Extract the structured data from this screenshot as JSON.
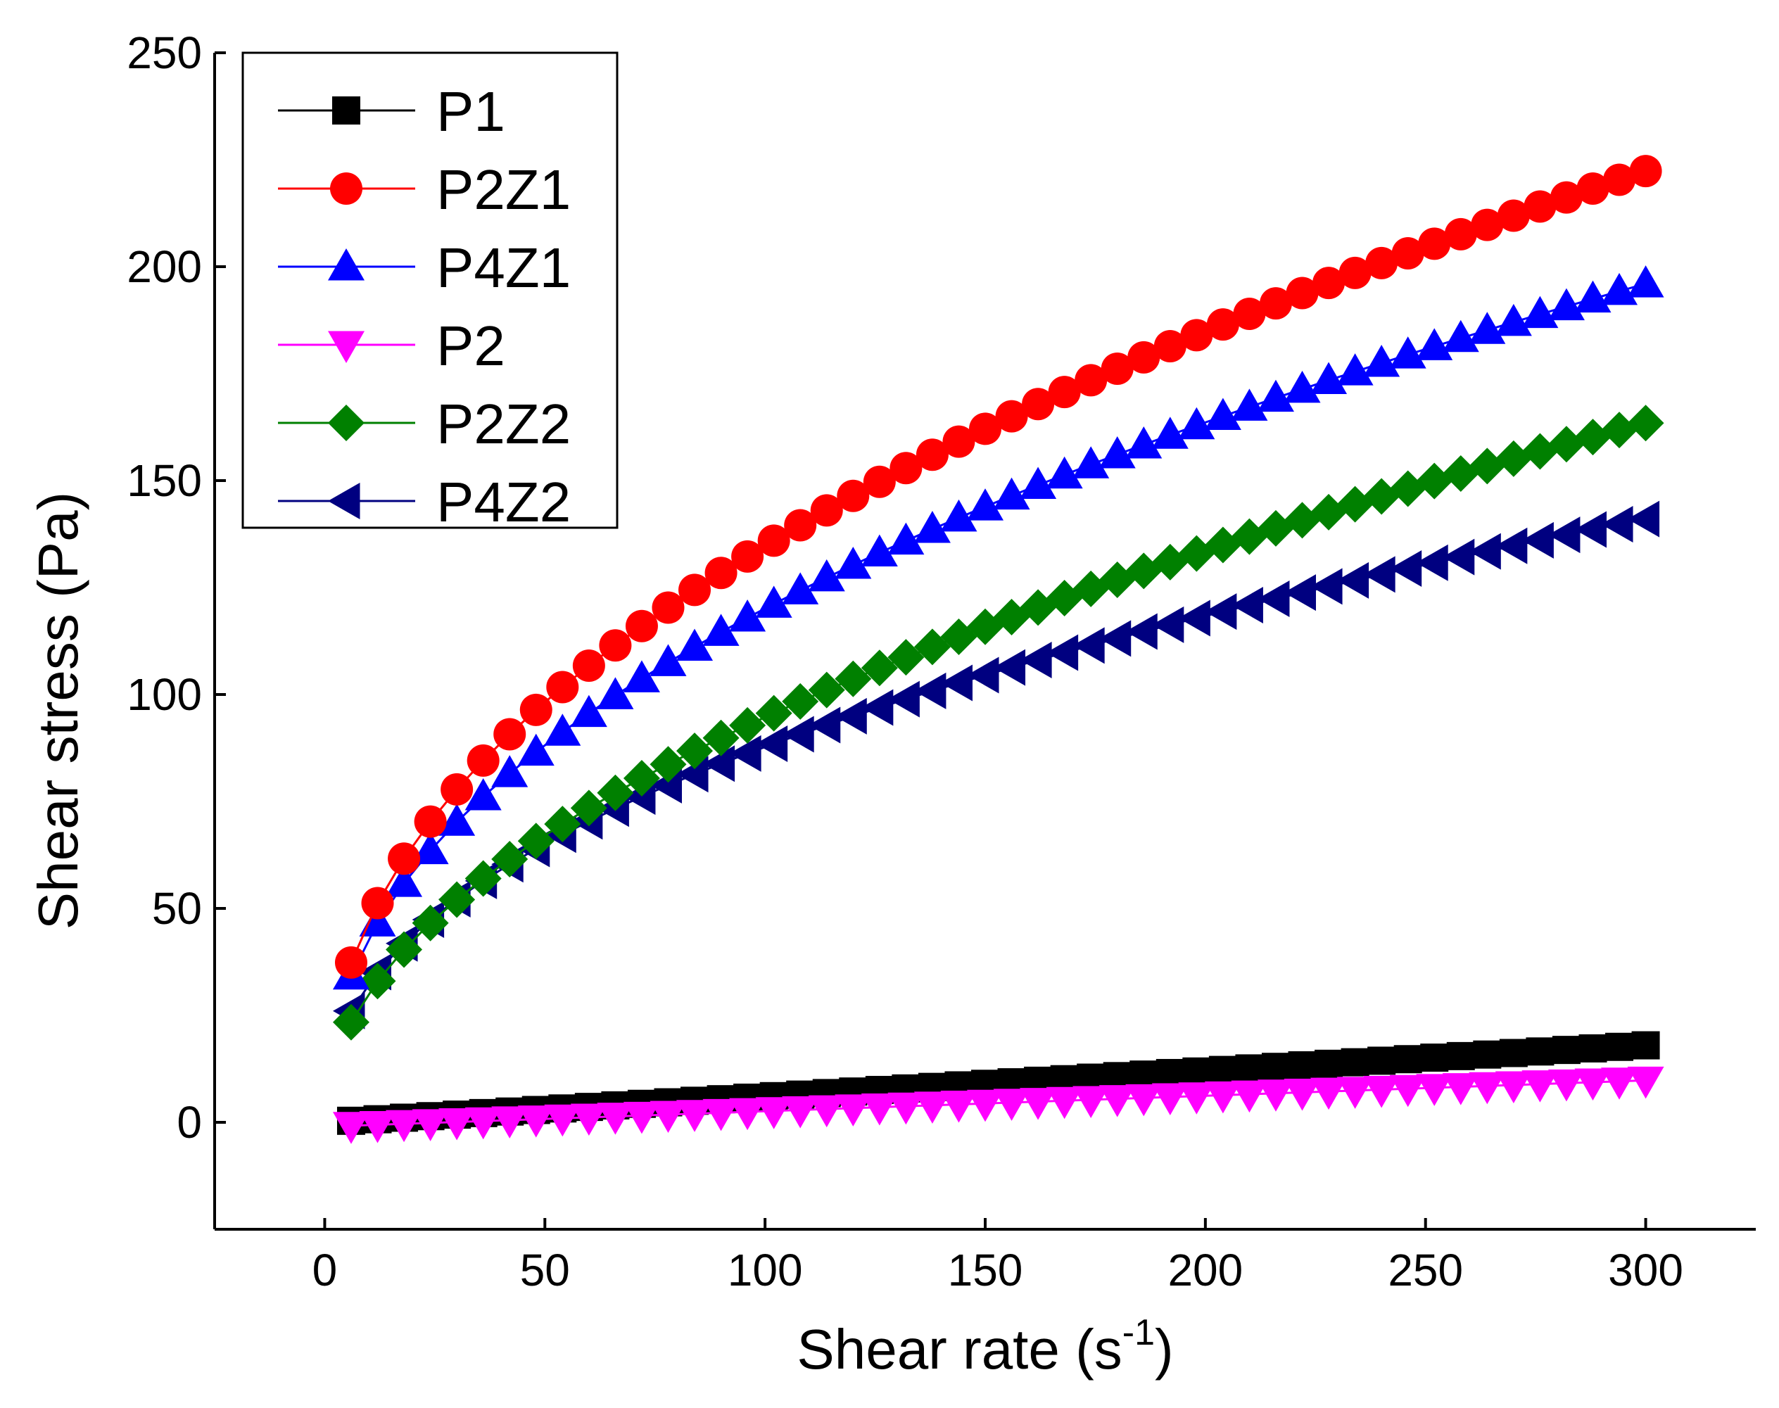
{
  "chart_data": {
    "type": "line",
    "title": "",
    "xlabel": "Shear rate (s",
    "xlabel_sup": "-1",
    "xlabel_close": ")",
    "ylabel": "Shear stress (Pa)",
    "xlim": [
      -25,
      325
    ],
    "ylim": [
      -25,
      250
    ],
    "xticks": [
      0,
      50,
      100,
      150,
      200,
      250,
      300
    ],
    "yticks": [
      0,
      50,
      100,
      150,
      200,
      250
    ],
    "grid": false,
    "legend_position": "top-left",
    "x": [
      6,
      12,
      18,
      24,
      30,
      36,
      42,
      48,
      54,
      60,
      66,
      72,
      78,
      84,
      90,
      96,
      102,
      108,
      114,
      120,
      126,
      132,
      138,
      144,
      150,
      156,
      162,
      168,
      174,
      180,
      186,
      192,
      198,
      204,
      210,
      216,
      222,
      228,
      234,
      240,
      246,
      252,
      258,
      264,
      270,
      276,
      282,
      288,
      294,
      300
    ],
    "series": [
      {
        "name": "P1",
        "color": "#000000",
        "marker": "square",
        "fn": "linear",
        "a": 0.0,
        "b": 0.06
      },
      {
        "name": "P2Z1",
        "color": "#ff0000",
        "marker": "circle",
        "fn": "power",
        "a": 16.5,
        "b": 0.456
      },
      {
        "name": "P4Z1",
        "color": "#0000ff",
        "marker": "triangle-up",
        "fn": "power",
        "a": 15.4,
        "b": 0.446
      },
      {
        "name": "P2",
        "color": "#ff00ff",
        "marker": "triangle-down",
        "fn": "linear",
        "a": -1.0,
        "b": 0.036
      },
      {
        "name": "P2Z2",
        "color": "#008000",
        "marker": "diamond",
        "fn": "power",
        "a": 9.6,
        "b": 0.497
      },
      {
        "name": "P4Z2",
        "color": "#000080",
        "marker": "triangle-left",
        "fn": "power",
        "a": 12.0,
        "b": 0.432
      }
    ]
  }
}
